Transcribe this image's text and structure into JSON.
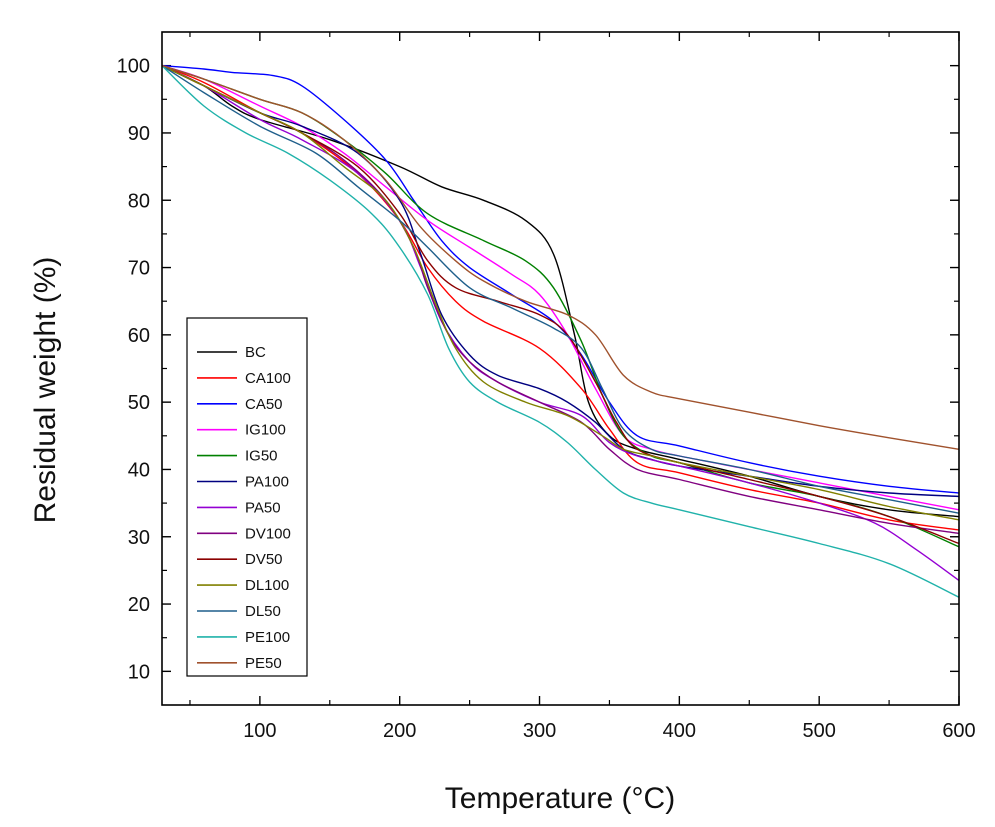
{
  "chart_data": {
    "type": "line",
    "title": "",
    "xlabel": "Temperature (°C)",
    "ylabel": "Residual weight (%)",
    "xlim": [
      30,
      600
    ],
    "ylim": [
      5,
      105
    ],
    "xticks": [
      100,
      200,
      300,
      400,
      500,
      600
    ],
    "yticks": [
      10,
      20,
      30,
      40,
      50,
      60,
      70,
      80,
      90,
      100
    ],
    "legend_position": "bottom-left",
    "series": [
      {
        "name": "BC",
        "color": "#000000",
        "points": [
          [
            30,
            100
          ],
          [
            60,
            97
          ],
          [
            80,
            94
          ],
          [
            100,
            92
          ],
          [
            150,
            89
          ],
          [
            200,
            85
          ],
          [
            230,
            82
          ],
          [
            260,
            80
          ],
          [
            290,
            77
          ],
          [
            310,
            72
          ],
          [
            325,
            60
          ],
          [
            335,
            50
          ],
          [
            350,
            45
          ],
          [
            370,
            43
          ],
          [
            400,
            41.5
          ],
          [
            450,
            39
          ],
          [
            500,
            36
          ],
          [
            550,
            34
          ],
          [
            600,
            33
          ]
        ]
      },
      {
        "name": "CA100",
        "color": "#ff0000",
        "points": [
          [
            30,
            100
          ],
          [
            60,
            97.5
          ],
          [
            100,
            93
          ],
          [
            130,
            90
          ],
          [
            170,
            84
          ],
          [
            200,
            77
          ],
          [
            220,
            70
          ],
          [
            240,
            65
          ],
          [
            260,
            62
          ],
          [
            300,
            58
          ],
          [
            330,
            52
          ],
          [
            350,
            46
          ],
          [
            370,
            41
          ],
          [
            400,
            39.5
          ],
          [
            450,
            37
          ],
          [
            500,
            35
          ],
          [
            550,
            32.5
          ],
          [
            600,
            31
          ]
        ]
      },
      {
        "name": "CA50",
        "color": "#0000ff",
        "points": [
          [
            30,
            100
          ],
          [
            60,
            99.5
          ],
          [
            80,
            99
          ],
          [
            110,
            98.5
          ],
          [
            130,
            97
          ],
          [
            160,
            92
          ],
          [
            190,
            86
          ],
          [
            210,
            80
          ],
          [
            230,
            74
          ],
          [
            250,
            70
          ],
          [
            280,
            66
          ],
          [
            310,
            62
          ],
          [
            330,
            57
          ],
          [
            350,
            50
          ],
          [
            370,
            45
          ],
          [
            400,
            43.5
          ],
          [
            450,
            41
          ],
          [
            500,
            39
          ],
          [
            550,
            37.5
          ],
          [
            600,
            36.5
          ]
        ]
      },
      {
        "name": "IG100",
        "color": "#ff00ff",
        "points": [
          [
            30,
            100
          ],
          [
            60,
            98
          ],
          [
            100,
            94
          ],
          [
            130,
            91
          ],
          [
            160,
            87
          ],
          [
            190,
            82
          ],
          [
            220,
            77
          ],
          [
            250,
            73
          ],
          [
            280,
            69
          ],
          [
            300,
            66
          ],
          [
            320,
            60
          ],
          [
            340,
            52
          ],
          [
            360,
            45
          ],
          [
            380,
            43
          ],
          [
            400,
            42
          ],
          [
            450,
            40
          ],
          [
            500,
            38
          ],
          [
            550,
            36
          ],
          [
            600,
            34
          ]
        ]
      },
      {
        "name": "IG50",
        "color": "#008000",
        "points": [
          [
            30,
            100
          ],
          [
            60,
            98
          ],
          [
            100,
            95
          ],
          [
            130,
            93
          ],
          [
            160,
            89
          ],
          [
            190,
            84
          ],
          [
            220,
            78
          ],
          [
            260,
            74
          ],
          [
            290,
            71
          ],
          [
            310,
            67
          ],
          [
            330,
            59
          ],
          [
            345,
            51
          ],
          [
            360,
            45
          ],
          [
            380,
            42
          ],
          [
            400,
            41
          ],
          [
            450,
            38
          ],
          [
            500,
            36
          ],
          [
            550,
            33
          ],
          [
            600,
            28.5
          ]
        ]
      },
      {
        "name": "PA100",
        "color": "#000080",
        "points": [
          [
            30,
            100
          ],
          [
            60,
            97
          ],
          [
            100,
            93
          ],
          [
            130,
            91
          ],
          [
            170,
            87
          ],
          [
            200,
            80
          ],
          [
            215,
            72
          ],
          [
            230,
            63
          ],
          [
            250,
            57
          ],
          [
            270,
            54
          ],
          [
            300,
            52
          ],
          [
            320,
            50
          ],
          [
            340,
            47
          ],
          [
            360,
            43
          ],
          [
            380,
            41.5
          ],
          [
            400,
            40.5
          ],
          [
            450,
            39
          ],
          [
            500,
            37.5
          ],
          [
            550,
            36.5
          ],
          [
            600,
            36
          ]
        ]
      },
      {
        "name": "PA50",
        "color": "#9400d3",
        "points": [
          [
            30,
            100
          ],
          [
            60,
            97
          ],
          [
            100,
            92
          ],
          [
            130,
            89
          ],
          [
            170,
            84
          ],
          [
            200,
            77
          ],
          [
            215,
            70
          ],
          [
            230,
            62
          ],
          [
            250,
            56
          ],
          [
            270,
            53
          ],
          [
            300,
            50
          ],
          [
            330,
            48
          ],
          [
            350,
            44
          ],
          [
            370,
            42
          ],
          [
            400,
            40.5
          ],
          [
            450,
            38
          ],
          [
            500,
            35
          ],
          [
            540,
            32
          ],
          [
            570,
            28
          ],
          [
            600,
            23.5
          ]
        ]
      },
      {
        "name": "DV100",
        "color": "#800080",
        "points": [
          [
            30,
            100
          ],
          [
            60,
            97
          ],
          [
            100,
            93
          ],
          [
            130,
            90
          ],
          [
            160,
            86
          ],
          [
            190,
            80
          ],
          [
            210,
            73
          ],
          [
            220,
            67
          ],
          [
            235,
            60
          ],
          [
            250,
            56
          ],
          [
            270,
            53
          ],
          [
            300,
            50
          ],
          [
            330,
            47
          ],
          [
            350,
            43
          ],
          [
            370,
            40
          ],
          [
            400,
            38.5
          ],
          [
            450,
            36
          ],
          [
            500,
            34
          ],
          [
            550,
            32
          ],
          [
            600,
            30.5
          ]
        ]
      },
      {
        "name": "DV50",
        "color": "#8b0000",
        "points": [
          [
            30,
            100
          ],
          [
            60,
            97
          ],
          [
            100,
            93
          ],
          [
            130,
            90
          ],
          [
            170,
            85
          ],
          [
            200,
            78
          ],
          [
            220,
            71
          ],
          [
            240,
            67
          ],
          [
            270,
            65
          ],
          [
            300,
            63
          ],
          [
            320,
            60
          ],
          [
            340,
            53
          ],
          [
            355,
            47
          ],
          [
            370,
            43
          ],
          [
            400,
            41
          ],
          [
            450,
            38.5
          ],
          [
            500,
            36
          ],
          [
            550,
            33
          ],
          [
            600,
            29
          ]
        ]
      },
      {
        "name": "DL100",
        "color": "#808000",
        "points": [
          [
            30,
            100
          ],
          [
            60,
            97
          ],
          [
            100,
            93
          ],
          [
            130,
            90
          ],
          [
            160,
            85
          ],
          [
            190,
            80
          ],
          [
            210,
            73
          ],
          [
            225,
            65
          ],
          [
            240,
            58
          ],
          [
            260,
            53
          ],
          [
            290,
            50
          ],
          [
            320,
            48
          ],
          [
            345,
            45
          ],
          [
            360,
            43
          ],
          [
            380,
            42
          ],
          [
            400,
            41
          ],
          [
            450,
            39
          ],
          [
            500,
            37
          ],
          [
            550,
            34.5
          ],
          [
            600,
            32.5
          ]
        ]
      },
      {
        "name": "DL50",
        "color": "#1f5f8b",
        "points": [
          [
            30,
            100
          ],
          [
            60,
            96
          ],
          [
            100,
            91
          ],
          [
            140,
            87
          ],
          [
            170,
            82
          ],
          [
            200,
            77
          ],
          [
            220,
            73
          ],
          [
            250,
            67
          ],
          [
            280,
            64
          ],
          [
            310,
            61
          ],
          [
            330,
            58
          ],
          [
            345,
            52
          ],
          [
            360,
            46
          ],
          [
            380,
            43
          ],
          [
            400,
            42
          ],
          [
            450,
            40
          ],
          [
            500,
            37.5
          ],
          [
            550,
            35.5
          ],
          [
            600,
            33.5
          ]
        ]
      },
      {
        "name": "PE100",
        "color": "#20b2aa",
        "points": [
          [
            30,
            100
          ],
          [
            60,
            94
          ],
          [
            90,
            90
          ],
          [
            120,
            87
          ],
          [
            150,
            83
          ],
          [
            180,
            78
          ],
          [
            200,
            73
          ],
          [
            220,
            66
          ],
          [
            235,
            58
          ],
          [
            250,
            53
          ],
          [
            270,
            50
          ],
          [
            300,
            47
          ],
          [
            320,
            44
          ],
          [
            340,
            40
          ],
          [
            360,
            36.5
          ],
          [
            380,
            35
          ],
          [
            400,
            34
          ],
          [
            450,
            31.5
          ],
          [
            500,
            29
          ],
          [
            550,
            26
          ],
          [
            600,
            21
          ]
        ]
      },
      {
        "name": "PE50",
        "color": "#a0522d",
        "points": [
          [
            30,
            100
          ],
          [
            60,
            98
          ],
          [
            100,
            95
          ],
          [
            130,
            93
          ],
          [
            160,
            89
          ],
          [
            190,
            83
          ],
          [
            215,
            76
          ],
          [
            240,
            71
          ],
          [
            260,
            68
          ],
          [
            290,
            65
          ],
          [
            320,
            63
          ],
          [
            340,
            60
          ],
          [
            360,
            54
          ],
          [
            380,
            51.5
          ],
          [
            400,
            50.5
          ],
          [
            450,
            48.5
          ],
          [
            500,
            46.5
          ],
          [
            550,
            44.7
          ],
          [
            600,
            43
          ]
        ]
      }
    ]
  }
}
